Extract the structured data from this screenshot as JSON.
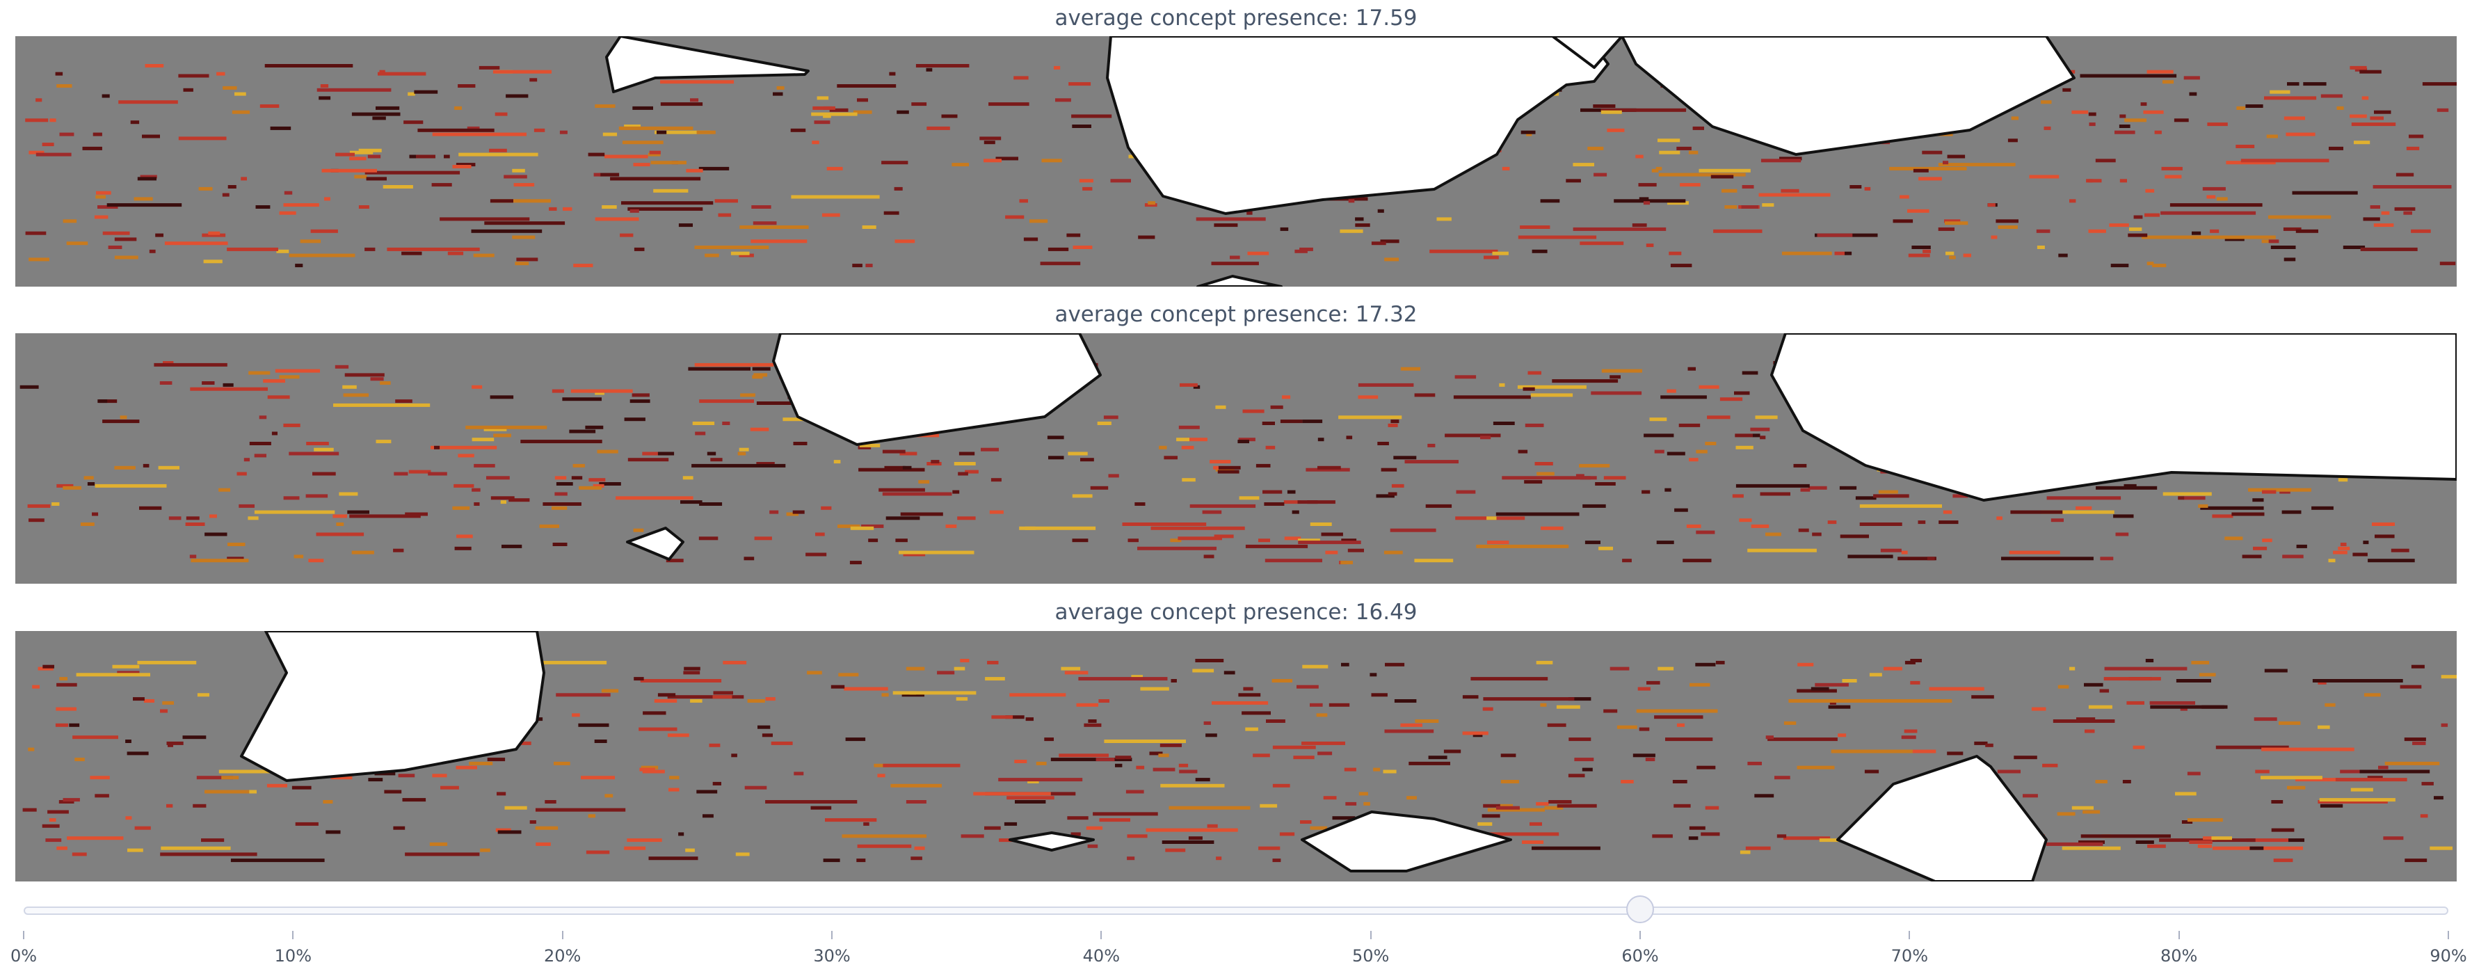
{
  "chart_data": [
    {
      "type": "heatmap",
      "title": "average concept presence: 17.59",
      "background_color": "#808080",
      "blob_color": "#ffffff",
      "note_colors": [
        "#3a0d0d",
        "#5a1010",
        "#7a1a1a",
        "#9e2b2b",
        "#c0392b",
        "#e05030",
        "#c87a1e",
        "#e0b030"
      ],
      "seed": 17
    },
    {
      "type": "heatmap",
      "title": "average concept presence: 17.32",
      "background_color": "#808080",
      "blob_color": "#ffffff",
      "note_colors": [
        "#3a0d0d",
        "#5a1010",
        "#7a1a1a",
        "#9e2b2b",
        "#c0392b",
        "#e05030",
        "#c87a1e",
        "#e0b030"
      ],
      "seed": 29
    },
    {
      "type": "heatmap",
      "title": "average concept presence: 16.49",
      "background_color": "#808080",
      "blob_color": "#ffffff",
      "note_colors": [
        "#3a0d0d",
        "#5a1010",
        "#7a1a1a",
        "#9e2b2b",
        "#c0392b",
        "#e05030",
        "#c87a1e",
        "#e0b030"
      ],
      "seed": 41
    }
  ],
  "slider": {
    "value": 0.6,
    "min": 0,
    "max": 0.9,
    "ticks": [
      "0%",
      "10%",
      "20%",
      "30%",
      "40%",
      "50%",
      "60%",
      "70%",
      "80%",
      "90%"
    ]
  }
}
